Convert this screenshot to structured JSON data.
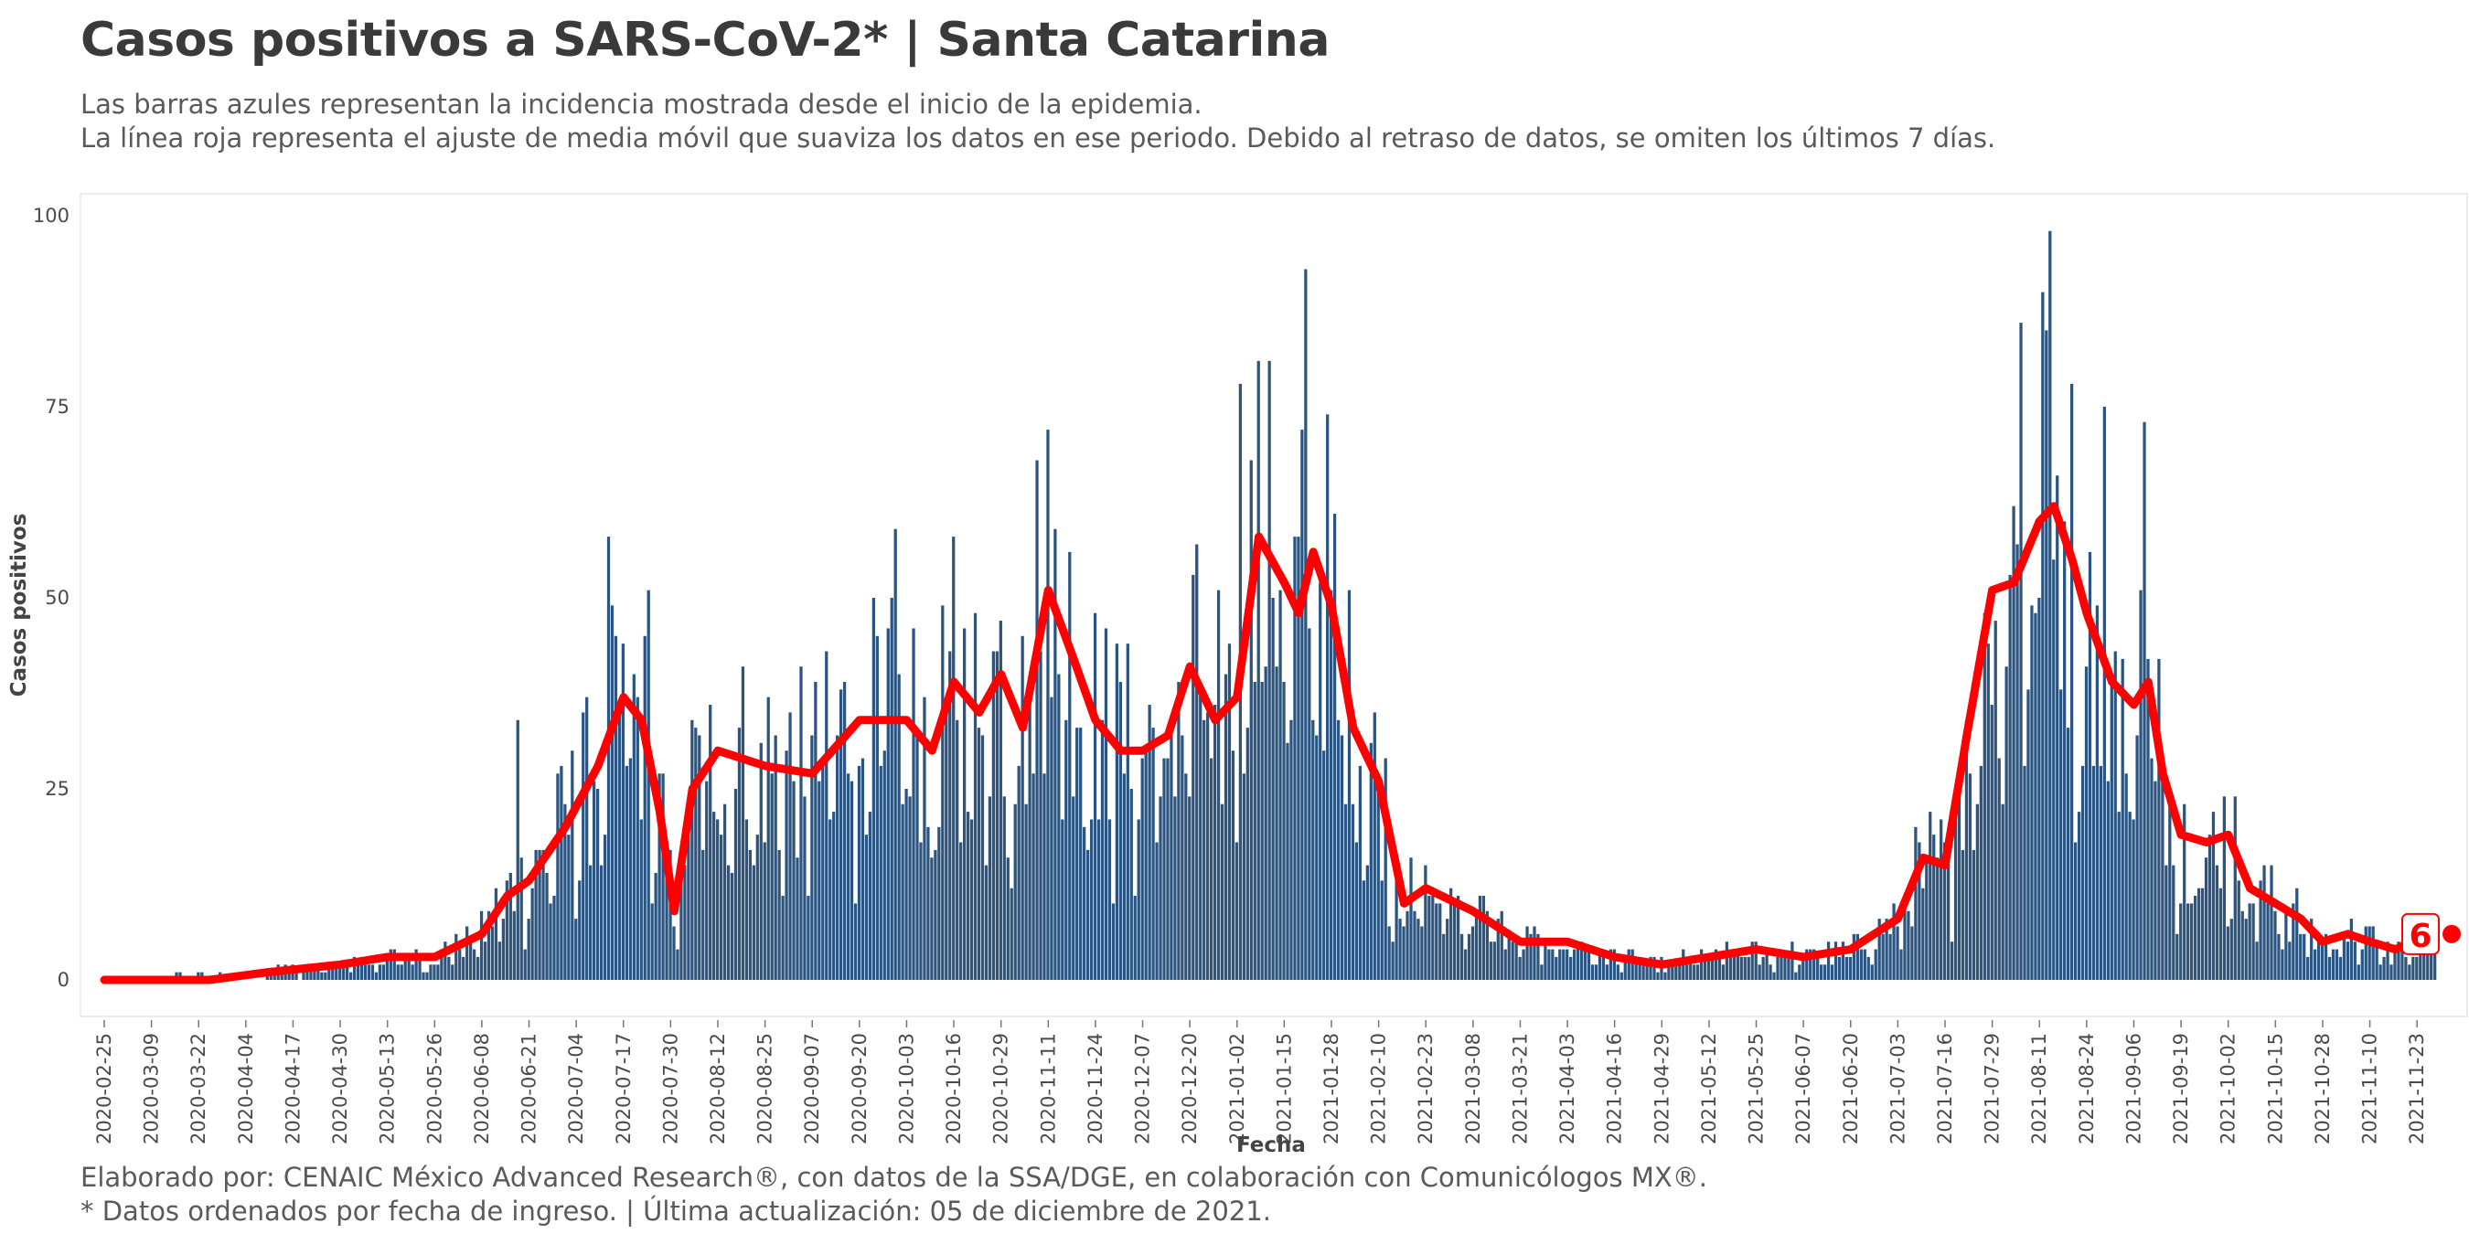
{
  "title": "Casos positivos a SARS-CoV-2* | Santa Catarina",
  "subtitle": {
    "line1": "Las barras azules representan la incidencia mostrada desde el inicio de la epidemia.",
    "line2": "La línea roja representa el ajuste de media móvil que suaviza los datos en ese periodo. Debido al retraso de datos, se omiten los últimos 7 días."
  },
  "caption": {
    "line1": "Elaborado por: CENAIC México Advanced Research®, con datos de la SSA/DGE, en colaboración con Comunicólogos MX®.",
    "line2": "* Datos ordenados por fecha de ingreso. | Última actualización: 05 de diciembre de 2021."
  },
  "chart_data": {
    "type": "bar",
    "xlabel": "Fecha",
    "ylabel": "Casos positivos",
    "ylim": [
      0,
      100
    ],
    "yticks": [
      0,
      25,
      50,
      75,
      100
    ],
    "x_start": "2020-02-25",
    "x_end": "2021-11-28",
    "xticks": [
      "2020-02-25",
      "2020-03-09",
      "2020-03-22",
      "2020-04-04",
      "2020-04-17",
      "2020-04-30",
      "2020-05-13",
      "2020-05-26",
      "2020-06-08",
      "2020-06-21",
      "2020-07-04",
      "2020-07-17",
      "2020-07-30",
      "2020-08-12",
      "2020-08-25",
      "2020-09-07",
      "2020-09-20",
      "2020-10-03",
      "2020-10-16",
      "2020-10-29",
      "2020-11-11",
      "2020-11-24",
      "2020-12-07",
      "2020-12-20",
      "2021-01-02",
      "2021-01-15",
      "2021-01-28",
      "2021-02-10",
      "2021-02-23",
      "2021-03-08",
      "2021-03-21",
      "2021-04-03",
      "2021-04-16",
      "2021-04-29",
      "2021-05-12",
      "2021-05-25",
      "2021-06-07",
      "2021-06-20",
      "2021-07-03",
      "2021-07-16",
      "2021-07-29",
      "2021-08-11",
      "2021-08-24",
      "2021-09-06",
      "2021-09-19",
      "2021-10-02",
      "2021-10-15",
      "2021-10-28",
      "2021-11-10",
      "2021-11-23"
    ],
    "grid": false,
    "series": [
      {
        "type": "bar",
        "color": "#2b5580",
        "anchors": [
          [
            "2020-02-25",
            0
          ],
          [
            "2020-03-25",
            0
          ],
          [
            "2020-04-10",
            1
          ],
          [
            "2020-04-30",
            2
          ],
          [
            "2020-05-13",
            3
          ],
          [
            "2020-05-26",
            3
          ],
          [
            "2020-06-08",
            6
          ],
          [
            "2020-06-15",
            11
          ],
          [
            "2020-06-21",
            13
          ],
          [
            "2020-07-01",
            20
          ],
          [
            "2020-07-10",
            28
          ],
          [
            "2020-07-17",
            37
          ],
          [
            "2020-07-22",
            34
          ],
          [
            "2020-07-27",
            22
          ],
          [
            "2020-07-31",
            9
          ],
          [
            "2020-08-05",
            25
          ],
          [
            "2020-08-12",
            30
          ],
          [
            "2020-08-25",
            28
          ],
          [
            "2020-09-07",
            27
          ],
          [
            "2020-09-20",
            34
          ],
          [
            "2020-10-03",
            34
          ],
          [
            "2020-10-10",
            30
          ],
          [
            "2020-10-16",
            39
          ],
          [
            "2020-10-23",
            35
          ],
          [
            "2020-10-29",
            40
          ],
          [
            "2020-11-04",
            33
          ],
          [
            "2020-11-11",
            51
          ],
          [
            "2020-11-18",
            42
          ],
          [
            "2020-11-24",
            34
          ],
          [
            "2020-12-01",
            30
          ],
          [
            "2020-12-07",
            30
          ],
          [
            "2020-12-14",
            32
          ],
          [
            "2020-12-20",
            41
          ],
          [
            "2020-12-27",
            34
          ],
          [
            "2021-01-02",
            37
          ],
          [
            "2021-01-08",
            58
          ],
          [
            "2021-01-15",
            52
          ],
          [
            "2021-01-19",
            48
          ],
          [
            "2021-01-23",
            56
          ],
          [
            "2021-01-28",
            49
          ],
          [
            "2021-02-03",
            33
          ],
          [
            "2021-02-10",
            26
          ],
          [
            "2021-02-17",
            10
          ],
          [
            "2021-02-23",
            12
          ],
          [
            "2021-03-08",
            9
          ],
          [
            "2021-03-21",
            5
          ],
          [
            "2021-04-03",
            5
          ],
          [
            "2021-04-16",
            3
          ],
          [
            "2021-04-29",
            2
          ],
          [
            "2021-05-12",
            3
          ],
          [
            "2021-05-25",
            4
          ],
          [
            "2021-06-07",
            3
          ],
          [
            "2021-06-20",
            4
          ],
          [
            "2021-07-03",
            8
          ],
          [
            "2021-07-10",
            16
          ],
          [
            "2021-07-16",
            15
          ],
          [
            "2021-07-22",
            32
          ],
          [
            "2021-07-29",
            51
          ],
          [
            "2021-08-04",
            52
          ],
          [
            "2021-08-11",
            60
          ],
          [
            "2021-08-15",
            62
          ],
          [
            "2021-08-20",
            55
          ],
          [
            "2021-08-24",
            48
          ],
          [
            "2021-08-31",
            39
          ],
          [
            "2021-09-06",
            36
          ],
          [
            "2021-09-10",
            39
          ],
          [
            "2021-09-14",
            27
          ],
          [
            "2021-09-19",
            19
          ],
          [
            "2021-09-26",
            18
          ],
          [
            "2021-10-02",
            19
          ],
          [
            "2021-10-08",
            12
          ],
          [
            "2021-10-15",
            10
          ],
          [
            "2021-10-22",
            8
          ],
          [
            "2021-10-28",
            5
          ],
          [
            "2021-11-04",
            6
          ],
          [
            "2021-11-10",
            5
          ],
          [
            "2021-11-17",
            4
          ],
          [
            "2021-11-28",
            6
          ]
        ],
        "peaks": [
          [
            "2020-06-18",
            34
          ],
          [
            "2020-07-13",
            58
          ],
          [
            "2020-07-24",
            51
          ],
          [
            "2020-09-30",
            59
          ],
          [
            "2020-11-11",
            72
          ],
          [
            "2020-11-08",
            68
          ],
          [
            "2021-01-08",
            81
          ],
          [
            "2021-01-21",
            93
          ],
          [
            "2021-01-03",
            78
          ],
          [
            "2021-08-14",
            98
          ],
          [
            "2021-08-12",
            90
          ],
          [
            "2021-08-06",
            86
          ],
          [
            "2021-09-09",
            73
          ],
          [
            "2021-08-29",
            75
          ]
        ]
      },
      {
        "name": "media móvil",
        "type": "line",
        "color": "#ff0000"
      }
    ],
    "last_value_label": "6"
  }
}
